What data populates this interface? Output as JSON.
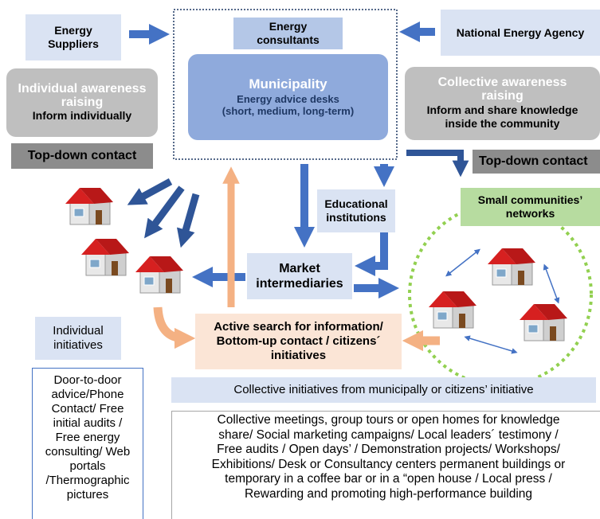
{
  "nodes": {
    "energy_suppliers": {
      "lines": [
        "Energy",
        "Suppliers"
      ]
    },
    "energy_consultants": {
      "lines": [
        "Energy",
        "consultants"
      ]
    },
    "national_energy_agency": {
      "lines": [
        "National Energy Agency"
      ]
    },
    "municipality": {
      "title": "Municipality",
      "lines": [
        "Energy advice desks",
        "(short, medium, long-term)"
      ]
    },
    "individual_awareness": {
      "title_lines": [
        "Individual awareness",
        "raising"
      ],
      "lines": [
        "Inform individually"
      ]
    },
    "collective_awareness": {
      "title_lines": [
        "Collective awareness",
        "raising"
      ],
      "lines": [
        "Inform and share knowledge",
        "inside the community"
      ]
    },
    "top_down_left": {
      "lines": [
        "Top-down contact"
      ]
    },
    "top_down_right": {
      "lines": [
        "Top-down contact"
      ]
    },
    "educational_institutions": {
      "lines": [
        "Educational",
        "institutions"
      ]
    },
    "small_communities": {
      "lines": [
        "Small communities’",
        "networks"
      ]
    },
    "market_intermediaries": {
      "lines": [
        "Market",
        "intermediaries"
      ]
    },
    "active_search": {
      "lines": [
        "Active search for information/",
        "Bottom-up contact / citizens´",
        "initiatives"
      ]
    },
    "individual_initiatives": {
      "lines": [
        "Individual",
        "initiatives"
      ]
    },
    "individual_examples": {
      "lines": [
        "Door-to-door",
        "advice/Phone",
        "Contact/ Free",
        "initial audits /",
        "Free energy",
        "consulting/ Web",
        "portals",
        "/Thermographic",
        "pictures"
      ]
    },
    "collective_initiatives": {
      "lines": [
        "Collective initiatives from municipally or citizens’ initiative"
      ]
    },
    "collective_examples": {
      "lines": [
        "Collective meetings, group tours or open homes for knowledge",
        "share/ Social marketing campaigns/ Local leaders´ testimony /",
        "Free audits / Open days’ / Demonstration projects/ Workshops/",
        "Exhibitions/ Desk or Consultancy centers permanent buildings or",
        "temporary in a coffee bar or in a “open house / Local press /",
        "Rewarding and promoting high-performance building"
      ]
    }
  }
}
